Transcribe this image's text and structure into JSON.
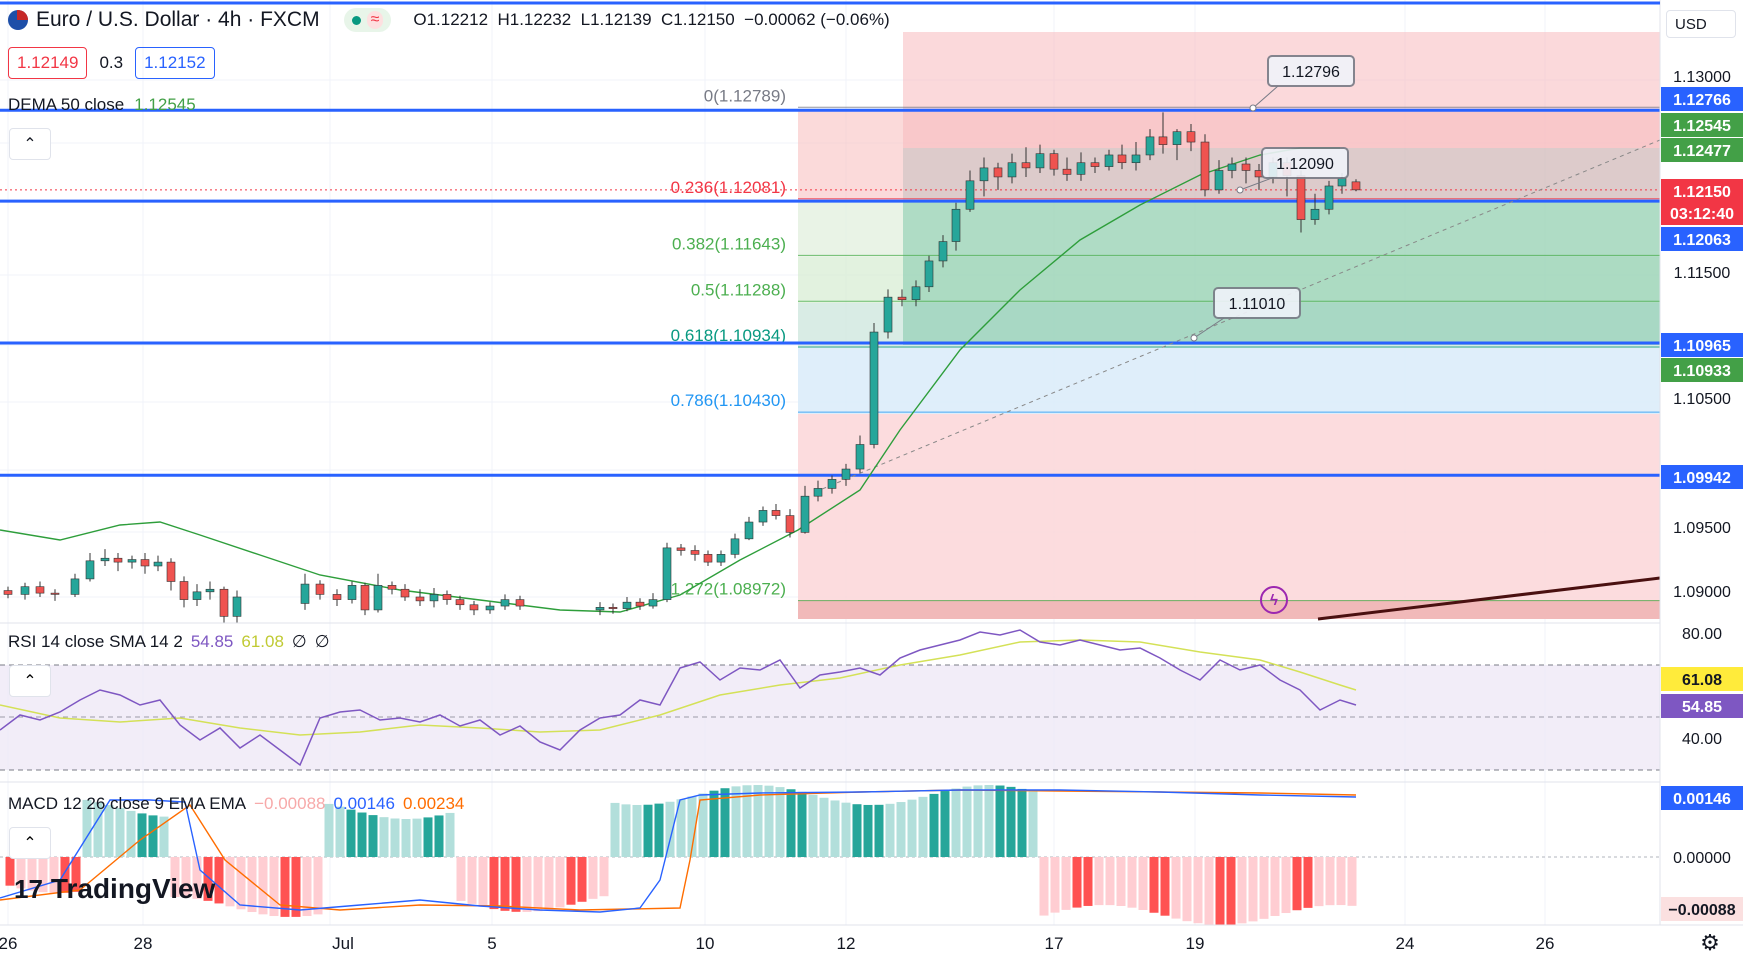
{
  "header": {
    "symbol": "Euro / U.S. Dollar · 4h · FXCM",
    "ohlc": "O1.12212  H1.12232  L1.12139  C1.12150  −0.00062 (−0.06%)",
    "bid": "1.12149",
    "spread": "0.3",
    "ask": "1.12152",
    "currency": "USD"
  },
  "indicators": {
    "dema": {
      "label": "DEMA 50 close",
      "value": "1.12545"
    },
    "rsi": {
      "label": "RSI 14 close SMA 14 2",
      "v1": "54.85",
      "v2": "61.08",
      "v3": "∅",
      "v4": "∅"
    },
    "macd": {
      "label": "MACD 12 26 close 9 EMA EMA",
      "hist": "−0.00088",
      "macd": "0.00146",
      "signal": "0.00234"
    }
  },
  "fib_levels": [
    {
      "label": "0(1.12789)",
      "value": 1.12789,
      "color": "#787b86"
    },
    {
      "label": "0.236(1.12081)",
      "value": 1.12081,
      "color": "#f23645"
    },
    {
      "label": "0.382(1.11643)",
      "value": 1.11643,
      "color": "#4caf50"
    },
    {
      "label": "0.5(1.11288)",
      "value": 1.11288,
      "color": "#4caf50"
    },
    {
      "label": "0.618(1.10934)",
      "value": 1.10934,
      "color": "#089981"
    },
    {
      "label": "0.786(1.10430)",
      "value": 1.1043,
      "color": "#2196f3"
    },
    {
      "label": "1.272(1.08972)",
      "value": 1.08972,
      "color": "#4caf50"
    }
  ],
  "callouts": [
    {
      "label": "1.12796"
    },
    {
      "label": "1.12090"
    },
    {
      "label": "1.11010"
    }
  ],
  "price_axis": {
    "ticks": [
      "1.13000",
      "1.11500",
      "1.10500",
      "1.09500",
      "1.09000"
    ],
    "badges": [
      {
        "text": "1.12766",
        "bg": "#2962ff"
      },
      {
        "text": "1.12545",
        "bg": "#43a047"
      },
      {
        "text": "1.12477",
        "bg": "#43a047"
      },
      {
        "text": "1.12150",
        "bg": "#f23645"
      },
      {
        "text": "03:12:40",
        "bg": "#f23645"
      },
      {
        "text": "1.12063",
        "bg": "#2962ff"
      },
      {
        "text": "1.10965",
        "bg": "#2962ff"
      },
      {
        "text": "1.10933",
        "bg": "#43a047"
      },
      {
        "text": "1.09942",
        "bg": "#2962ff"
      }
    ]
  },
  "rsi_axis": {
    "ticks": [
      "80.00",
      "40.00"
    ],
    "badges": [
      {
        "text": "61.08",
        "bg": "#ffeb3b",
        "fg": "#131722"
      },
      {
        "text": "54.85",
        "bg": "#7e57c2",
        "fg": "#ffffff"
      }
    ]
  },
  "macd_axis": {
    "ticks": [
      "0.00000"
    ],
    "badges": [
      {
        "text": "0.00146",
        "bg": "#2962ff",
        "fg": "#ffffff"
      },
      {
        "text": "−0.00088",
        "bg": "#fbe0e0",
        "fg": "#131722"
      }
    ]
  },
  "time_axis": [
    "26",
    "28",
    "Jul",
    "5",
    "10",
    "12",
    "17",
    "19",
    "24",
    "26"
  ],
  "logo": "TradingView",
  "colors": {
    "up": "#26a69a",
    "down": "#ef5350",
    "hline": "#2962ff"
  }
}
